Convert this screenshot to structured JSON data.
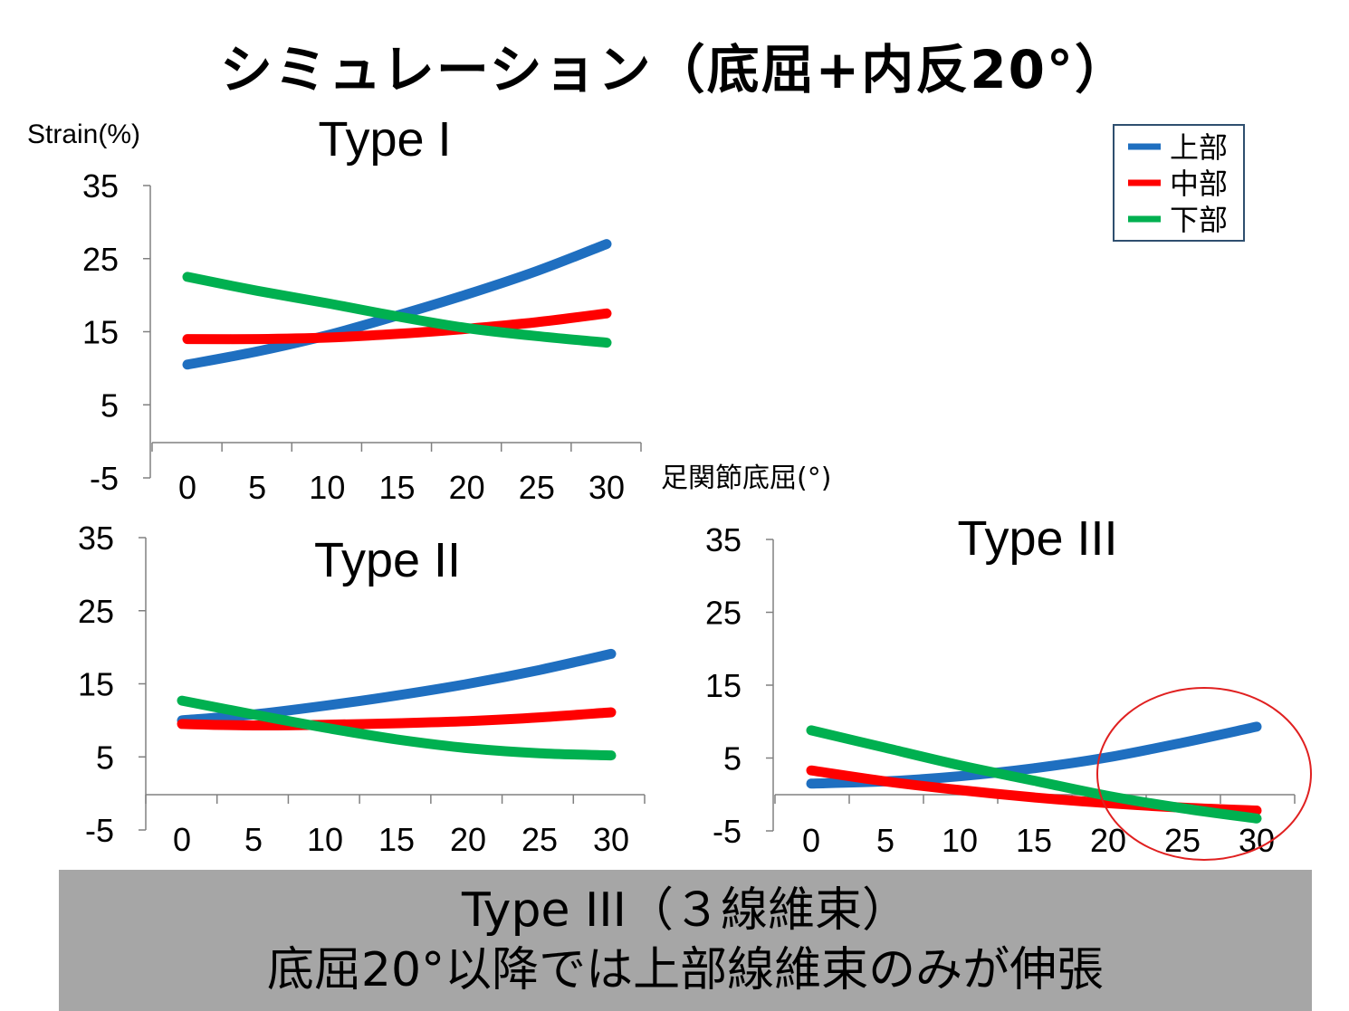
{
  "title": "シミュレーション（底屈+内反20°）",
  "legend": {
    "items": [
      {
        "label": "上部",
        "color": "#1f6fc0"
      },
      {
        "label": "中部",
        "color": "#ff0000"
      },
      {
        "label": "下部",
        "color": "#00b050"
      }
    ]
  },
  "footer": {
    "line1": "Type III（３線維束）",
    "line2": "底屈20°以降では上部線維束のみが伸張"
  },
  "highlight": {
    "shape": "ellipse",
    "color": "#e02020",
    "target_chart": "Type III"
  },
  "chart_data": [
    {
      "type": "line",
      "title": "Type I",
      "ylabel": "Strain(%)",
      "xlabel": "足関節底屈(°)",
      "x": [
        0,
        5,
        10,
        15,
        20,
        25,
        30
      ],
      "ylim": [
        -5,
        35
      ],
      "yticks": [
        -5,
        5,
        15,
        25,
        35
      ],
      "series": [
        {
          "name": "上部",
          "color": "#1f6fc0",
          "values": [
            10.5,
            12.3,
            14.5,
            17.2,
            20.1,
            23.3,
            27.0
          ]
        },
        {
          "name": "中部",
          "color": "#ff0000",
          "values": [
            14.0,
            14.0,
            14.2,
            14.7,
            15.4,
            16.3,
            17.5
          ]
        },
        {
          "name": "下部",
          "color": "#00b050",
          "values": [
            22.5,
            20.6,
            18.9,
            17.1,
            15.5,
            14.4,
            13.5
          ]
        }
      ]
    },
    {
      "type": "line",
      "title": "Type II",
      "x": [
        0,
        5,
        10,
        15,
        20,
        25,
        30
      ],
      "ylim": [
        -5,
        35
      ],
      "yticks": [
        -5,
        5,
        15,
        25,
        35
      ],
      "series": [
        {
          "name": "上部",
          "color": "#1f6fc0",
          "values": [
            10.0,
            10.8,
            12.0,
            13.4,
            15.0,
            16.9,
            19.1
          ]
        },
        {
          "name": "中部",
          "color": "#ff0000",
          "values": [
            9.5,
            9.3,
            9.4,
            9.6,
            9.9,
            10.4,
            11.1
          ]
        },
        {
          "name": "下部",
          "color": "#00b050",
          "values": [
            12.7,
            10.8,
            9.0,
            7.4,
            6.2,
            5.5,
            5.2
          ]
        }
      ]
    },
    {
      "type": "line",
      "title": "Type III",
      "x": [
        0,
        5,
        10,
        15,
        20,
        25,
        30
      ],
      "ylim": [
        -5,
        35
      ],
      "yticks": [
        -5,
        5,
        15,
        25,
        35
      ],
      "series": [
        {
          "name": "上部",
          "color": "#1f6fc0",
          "values": [
            1.5,
            1.8,
            2.5,
            3.6,
            5.1,
            7.1,
            9.3
          ]
        },
        {
          "name": "中部",
          "color": "#ff0000",
          "values": [
            3.3,
            1.8,
            0.6,
            -0.4,
            -1.2,
            -1.8,
            -2.2
          ]
        },
        {
          "name": "下部",
          "color": "#00b050",
          "values": [
            8.8,
            6.4,
            4.0,
            1.9,
            -0.2,
            -1.9,
            -3.3
          ]
        }
      ]
    }
  ]
}
